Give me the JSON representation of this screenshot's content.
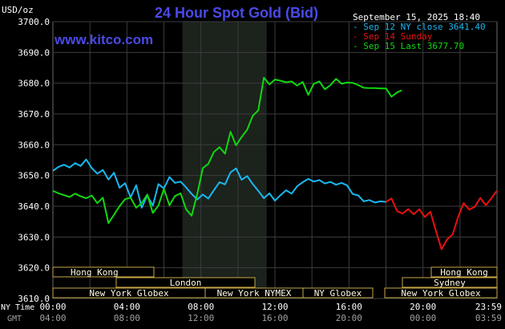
{
  "header": {
    "title": "24 Hour Spot Gold (Bid)",
    "site": "www.kitco.com",
    "y_unit": "USD/oz",
    "timestamp": "September 15, 2025 18:40"
  },
  "legend": [
    {
      "label": "Sep 12 NY close 3641.40",
      "color": "#18b8f0"
    },
    {
      "label": "Sep 14 Sunday",
      "color": "#e81010"
    },
    {
      "label": "Sep 15 Last 3677.70",
      "color": "#10d810"
    }
  ],
  "markets": [
    {
      "name": "Hong Kong"
    },
    {
      "name": "London"
    },
    {
      "name": "New York Globex"
    },
    {
      "name": "New York NYMEX"
    },
    {
      "name": "NY Globex"
    },
    {
      "name": "Hong Kong"
    },
    {
      "name": "Sydney"
    },
    {
      "name": "New York Globex"
    }
  ],
  "axis_labels": {
    "ny_time": "NY Time",
    "gmt": "GMT"
  },
  "colors": {
    "background": "#000000",
    "plot_background": "#000000",
    "highlight_band": "#1c221c",
    "grid": "#3c3c3c",
    "market_fill": "#fffbe2",
    "market_border": "#c8a848",
    "title": "#4a4ae8",
    "site": "#4a4ae8"
  },
  "chart_data": {
    "type": "line",
    "title": "24 Hour Spot Gold (Bid)",
    "ylabel": "USD/oz",
    "ylim": [
      3610,
      3700
    ],
    "y_ticks": [
      "3610.0",
      "3620.0",
      "3630.0",
      "3640.0",
      "3650.0",
      "3660.0",
      "3670.0",
      "3680.0",
      "3690.0",
      "3700.0"
    ],
    "x_ticks_ny": [
      "00:00",
      "04:00",
      "08:00",
      "12:00",
      "16:00",
      "20:00",
      "23:59"
    ],
    "x_ticks_gmt": [
      "04:00",
      "08:00",
      "12:00",
      "16:00",
      "20:00",
      "00:00",
      "03:59"
    ],
    "x_unit": "hours (NY Time)",
    "xlim": [
      0,
      24
    ],
    "highlight_range": [
      7.0,
      11.55
    ],
    "grid": true,
    "legend_position": "top-right",
    "series": [
      {
        "name": "Sep 12 NY close 3641.40",
        "color": "#18b8f0",
        "x": [
          0.0,
          0.3,
          0.6,
          0.9,
          1.2,
          1.5,
          1.8,
          2.1,
          2.4,
          2.7,
          3.0,
          3.3,
          3.6,
          3.9,
          4.2,
          4.5,
          4.8,
          5.1,
          5.4,
          5.7,
          6.0,
          6.3,
          6.6,
          6.9,
          7.2,
          7.5,
          7.8,
          8.1,
          8.4,
          8.7,
          9.0,
          9.3,
          9.6,
          9.9,
          10.2,
          10.5,
          10.8,
          11.1,
          11.4,
          11.7,
          12.0,
          12.3,
          12.6,
          12.9,
          13.2,
          13.5,
          13.8,
          14.1,
          14.4,
          14.7,
          15.0,
          15.3,
          15.6,
          15.9,
          16.2,
          16.5,
          16.8,
          17.1,
          17.4,
          17.7,
          18.0
        ],
        "values": [
          3651.5,
          3652.8,
          3653.5,
          3652.6,
          3654.0,
          3653.1,
          3655.2,
          3652.4,
          3650.6,
          3651.8,
          3648.7,
          3650.9,
          3646.0,
          3647.5,
          3642.9,
          3646.8,
          3639.5,
          3643.5,
          3640.2,
          3647.2,
          3645.8,
          3649.5,
          3647.6,
          3648.0,
          3646.1,
          3644.0,
          3642.2,
          3643.8,
          3642.5,
          3645.2,
          3647.8,
          3647.1,
          3651.0,
          3652.3,
          3648.6,
          3649.8,
          3647.2,
          3645.0,
          3642.6,
          3644.2,
          3641.8,
          3643.6,
          3645.2,
          3644.1,
          3646.5,
          3647.8,
          3648.9,
          3648.0,
          3648.5,
          3647.4,
          3647.9,
          3647.0,
          3647.6,
          3646.8,
          3644.0,
          3643.5,
          3641.6,
          3642.0,
          3641.2,
          3641.6,
          3641.4
        ]
      },
      {
        "name": "Sep 14 Sunday",
        "color": "#e81010",
        "x": [
          18.0,
          18.3,
          18.6,
          18.9,
          19.2,
          19.5,
          19.8,
          20.1,
          20.4,
          20.7,
          21.0,
          21.3,
          21.6,
          21.9,
          22.2,
          22.5,
          22.8,
          23.1,
          23.4,
          23.7,
          23.99
        ],
        "values": [
          3641.4,
          3642.5,
          3638.4,
          3637.6,
          3639.1,
          3637.4,
          3639.0,
          3636.5,
          3638.2,
          3632.0,
          3626.0,
          3629.2,
          3630.8,
          3636.5,
          3641.0,
          3638.9,
          3639.8,
          3642.7,
          3640.3,
          3642.6,
          3645.0
        ]
      },
      {
        "name": "Sep 15 Last 3677.70",
        "color": "#10d810",
        "x": [
          0.0,
          0.3,
          0.6,
          0.9,
          1.2,
          1.5,
          1.8,
          2.1,
          2.4,
          2.7,
          3.0,
          3.3,
          3.6,
          3.9,
          4.2,
          4.5,
          4.8,
          5.1,
          5.4,
          5.7,
          6.0,
          6.3,
          6.6,
          6.9,
          7.2,
          7.5,
          7.8,
          8.1,
          8.4,
          8.7,
          9.0,
          9.3,
          9.6,
          9.9,
          10.2,
          10.5,
          10.8,
          11.1,
          11.4,
          11.7,
          12.0,
          12.3,
          12.6,
          12.9,
          13.2,
          13.5,
          13.8,
          14.1,
          14.4,
          14.7,
          15.0,
          15.3,
          15.6,
          15.9,
          16.2,
          16.5,
          16.8,
          17.1,
          17.4,
          17.7,
          18.0,
          18.3,
          18.6,
          18.85
        ],
        "values": [
          3645.0,
          3644.2,
          3643.6,
          3643.0,
          3644.1,
          3643.2,
          3642.6,
          3643.5,
          3641.0,
          3642.8,
          3634.5,
          3637.2,
          3640.0,
          3642.3,
          3642.8,
          3639.5,
          3641.0,
          3643.8,
          3637.8,
          3640.2,
          3645.6,
          3640.3,
          3643.3,
          3644.2,
          3639.0,
          3636.9,
          3644.0,
          3652.4,
          3653.8,
          3657.6,
          3659.2,
          3657.1,
          3664.2,
          3659.8,
          3662.5,
          3664.9,
          3669.4,
          3671.2,
          3681.8,
          3679.6,
          3681.2,
          3680.8,
          3680.3,
          3680.6,
          3679.2,
          3680.4,
          3676.2,
          3679.8,
          3680.6,
          3678.0,
          3679.4,
          3681.4,
          3679.8,
          3680.2,
          3680.1,
          3679.4,
          3678.5,
          3678.4,
          3678.4,
          3678.3,
          3678.3,
          3675.6,
          3677.0,
          3677.7
        ]
      }
    ]
  }
}
